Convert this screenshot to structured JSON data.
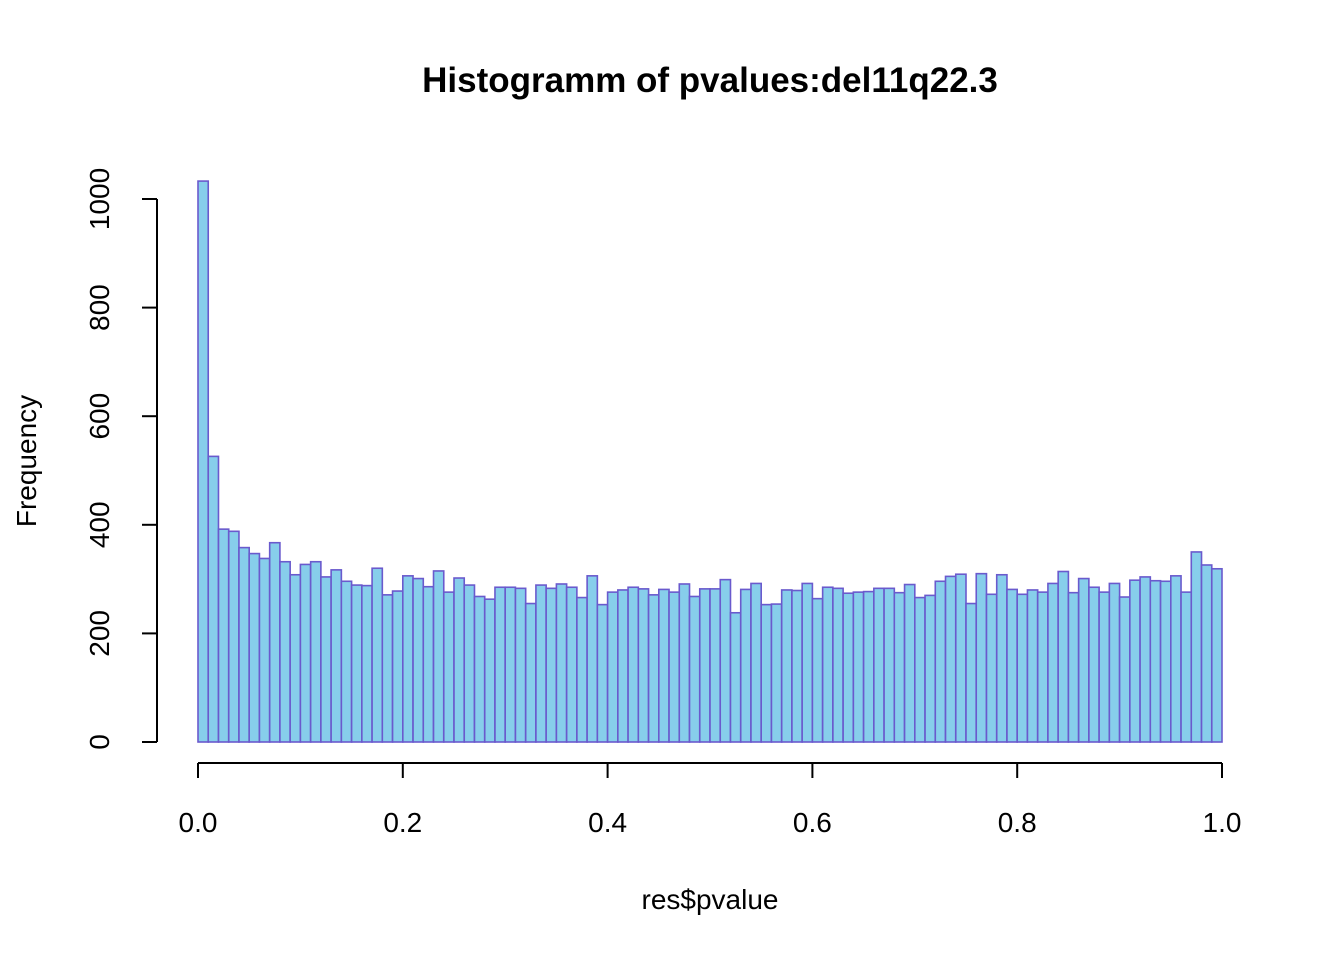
{
  "chart_data": {
    "type": "bar",
    "title": "Histogramm of pvalues:del11q22.3",
    "xlabel": "res$pvalue",
    "ylabel": "Frequency",
    "xlim": [
      0,
      1
    ],
    "ylim": [
      0,
      1000
    ],
    "x_ticks": [
      "0.0",
      "0.2",
      "0.4",
      "0.6",
      "0.8",
      "1.0"
    ],
    "y_ticks": [
      "0",
      "200",
      "400",
      "600",
      "800",
      "1000"
    ],
    "bin_width": 0.01,
    "grid": false,
    "legend": "none",
    "bar_fill": "#87ceeb",
    "bar_stroke": "#6a5acd",
    "values": [
      1033,
      526,
      392,
      388,
      358,
      347,
      338,
      367,
      332,
      308,
      327,
      332,
      304,
      317,
      296,
      289,
      288,
      320,
      271,
      278,
      306,
      301,
      286,
      315,
      276,
      302,
      289,
      268,
      263,
      285,
      285,
      283,
      255,
      289,
      283,
      291,
      285,
      266,
      306,
      253,
      276,
      280,
      285,
      282,
      271,
      281,
      276,
      291,
      268,
      282,
      282,
      299,
      238,
      281,
      292,
      253,
      254,
      280,
      279,
      292,
      264,
      285,
      283,
      274,
      276,
      277,
      283,
      283,
      275,
      290,
      266,
      270,
      296,
      305,
      309,
      255,
      310,
      272,
      308,
      281,
      272,
      280,
      276,
      292,
      314,
      275,
      301,
      285,
      276,
      292,
      267,
      298,
      304,
      297,
      296,
      306,
      276,
      350,
      326,
      319
    ]
  }
}
